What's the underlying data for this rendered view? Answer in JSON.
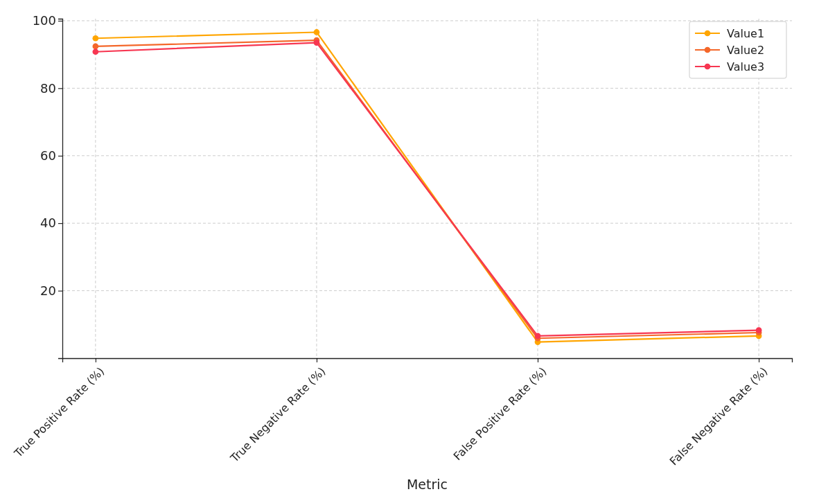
{
  "chart_data": {
    "type": "line",
    "xlabel": "Metric",
    "categories": [
      "True Positive Rate (%)",
      "True Negative Rate (%)",
      "False Positive Rate (%)",
      "False Negative Rate (%)"
    ],
    "ylim": [
      0,
      100.6
    ],
    "yticks": [
      20,
      40,
      60,
      80,
      100
    ],
    "series": [
      {
        "name": "Value1",
        "color": "#ffa500",
        "values": [
          94.8,
          96.6,
          4.8,
          6.6
        ]
      },
      {
        "name": "Value2",
        "color": "#f4672a",
        "values": [
          92.4,
          94.2,
          5.9,
          7.6
        ]
      },
      {
        "name": "Value3",
        "color": "#f73651",
        "values": [
          90.8,
          93.5,
          6.6,
          8.3
        ]
      }
    ],
    "grid": true,
    "legend": "top right",
    "marker": "circle",
    "line_style": "solid"
  }
}
